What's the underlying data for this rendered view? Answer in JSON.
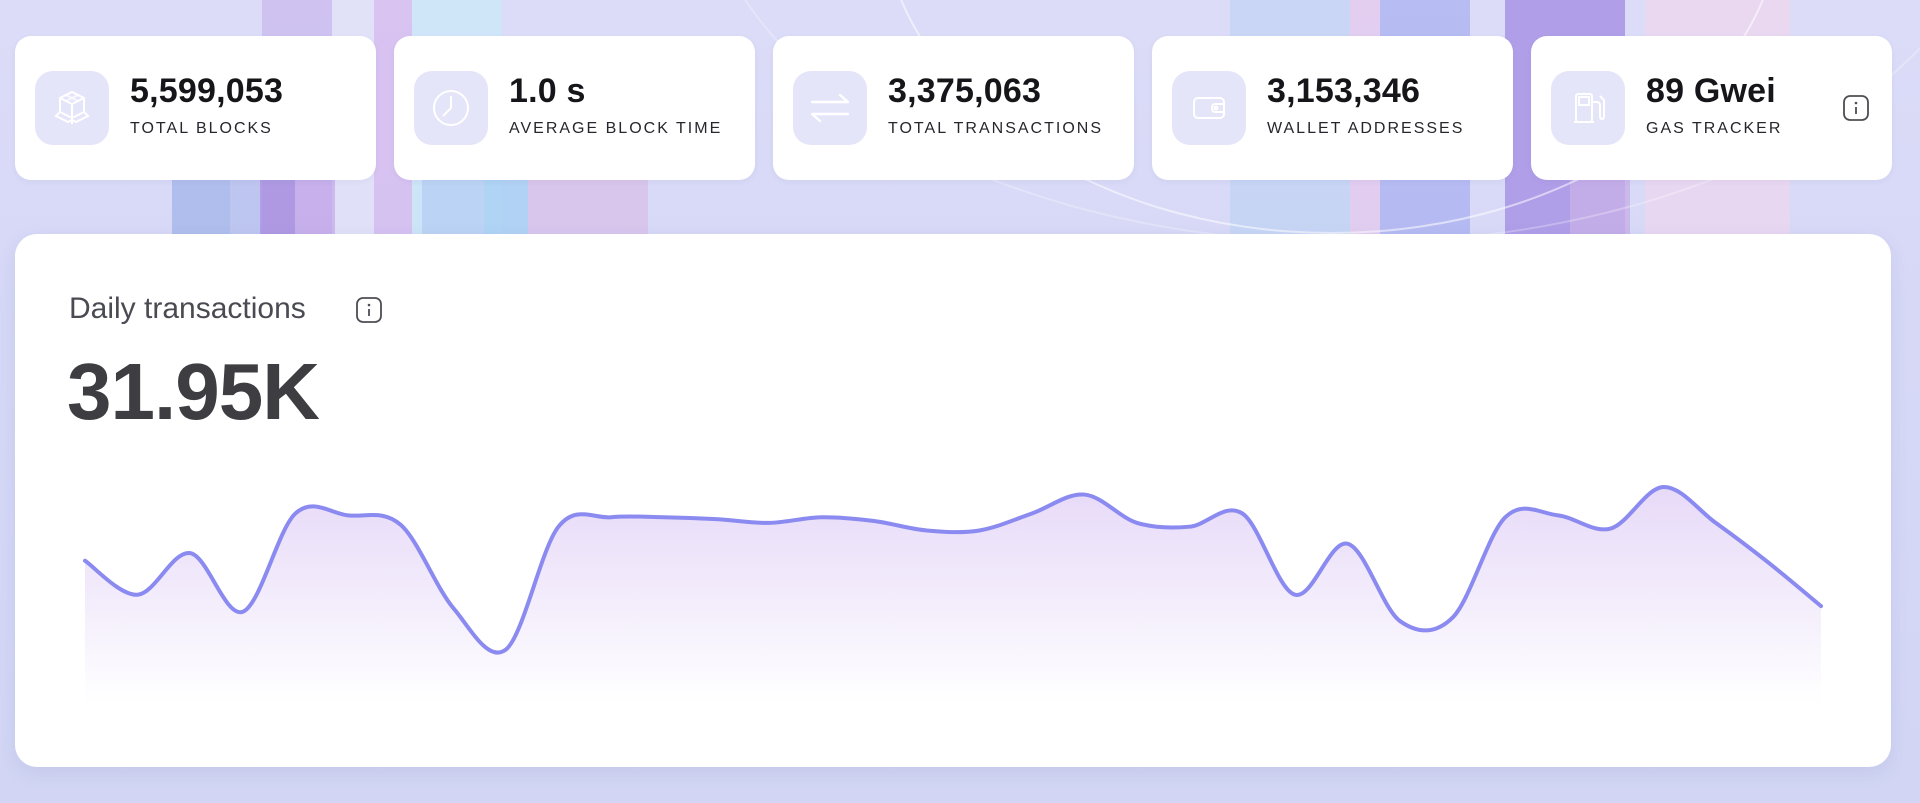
{
  "stats": [
    {
      "value": "5,599,053",
      "label": "TOTAL BLOCKS",
      "icon": "cubes-icon"
    },
    {
      "value": "1.0 s",
      "label": "AVERAGE BLOCK TIME",
      "icon": "clock-icon"
    },
    {
      "value": "3,375,063",
      "label": "TOTAL TRANSACTIONS",
      "icon": "transfer-arrows-icon"
    },
    {
      "value": "3,153,346",
      "label": "WALLET ADDRESSES",
      "icon": "wallet-icon"
    },
    {
      "value": "89 Gwei",
      "label": "GAS TRACKER",
      "icon": "fuel-pump-icon"
    }
  ],
  "daily": {
    "title": "Daily transactions",
    "value": "31.95K"
  },
  "colors": {
    "accent": "#8a8af0",
    "icon_bg": "#e5e5fa",
    "area_top": "#e9dcf8"
  },
  "chart_data": {
    "type": "area",
    "title": "Daily transactions",
    "xlabel": "",
    "ylabel": "",
    "ylim": [
      0,
      100
    ],
    "grid": false,
    "values": [
      61,
      43,
      65,
      34,
      86,
      85,
      80,
      36,
      14,
      79,
      84,
      84,
      83,
      81,
      84,
      82,
      77,
      77,
      86,
      96,
      81,
      79,
      86,
      43,
      70,
      29,
      31,
      84,
      85,
      78,
      100,
      81,
      60,
      37
    ]
  }
}
